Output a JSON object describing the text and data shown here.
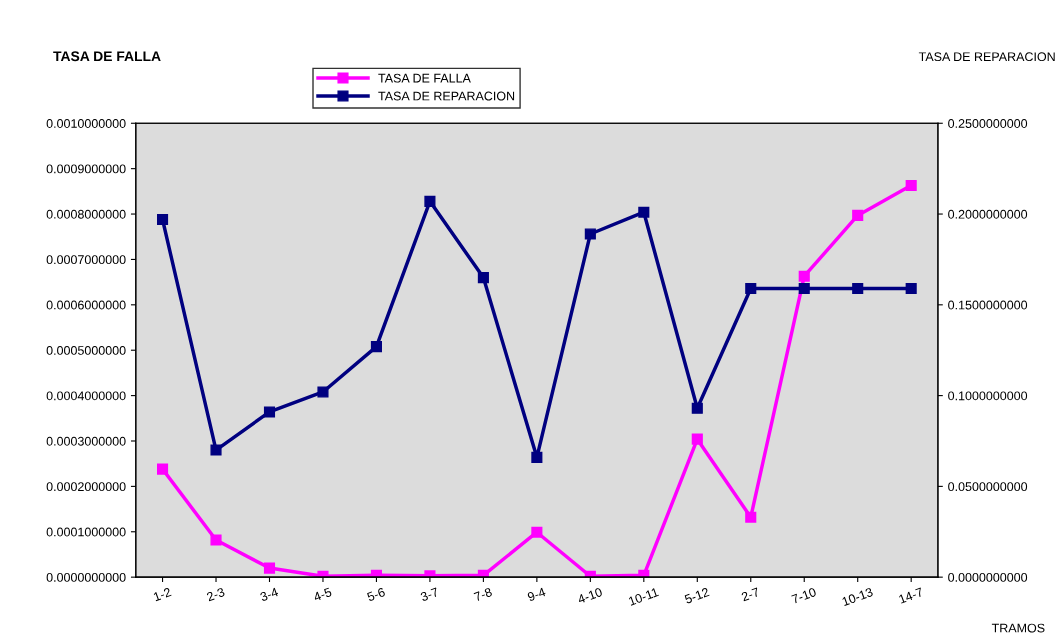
{
  "chart_data": {
    "type": "line",
    "categories": [
      "1-2",
      "2-3",
      "3-4",
      "4-5",
      "5-6",
      "3-7",
      "7-8",
      "9-4",
      "4-10",
      "10-11",
      "5-12",
      "2-7",
      "7-10",
      "10-13",
      "14-7"
    ],
    "series": [
      {
        "name": "TASA DE FALLA",
        "color": "#ff00ff",
        "values": [
          0.000238,
          8.2e-05,
          2e-05,
          2e-06,
          4e-06,
          3e-06,
          4e-06,
          9.9e-05,
          2e-06,
          4e-06,
          0.000304,
          0.000132,
          0.000663,
          0.000797,
          0.000863
        ]
      },
      {
        "name": "TASA DE REPARACION",
        "color": "#000080",
        "axis": "y2",
        "values": [
          0.197,
          0.07,
          0.091,
          0.102,
          0.127,
          0.207,
          0.165,
          0.066,
          0.189,
          0.201,
          0.093,
          0.159,
          0.159,
          0.159,
          0.159
        ]
      }
    ],
    "ylabel": "TASA DE FALLA",
    "y2label": "TASA DE REPARACION",
    "xlabel": "TRAMOS",
    "ylim": [
      0,
      0.001
    ],
    "yticks": [
      {
        "value": 0,
        "label": "0.0000000000"
      },
      {
        "value": 0.0001,
        "label": "0.0001000000"
      },
      {
        "value": 0.0002,
        "label": "0.0002000000"
      },
      {
        "value": 0.0003,
        "label": "0.0003000000"
      },
      {
        "value": 0.0004,
        "label": "0.0004000000"
      },
      {
        "value": 0.0005,
        "label": "0.0005000000"
      },
      {
        "value": 0.0006,
        "label": "0.0006000000"
      },
      {
        "value": 0.0007,
        "label": "0.0007000000"
      },
      {
        "value": 0.0008,
        "label": "0.0008000000"
      },
      {
        "value": 0.0009,
        "label": "0.0009000000"
      },
      {
        "value": 0.001,
        "label": "0.0010000000"
      }
    ],
    "y2lim": [
      0,
      0.25
    ],
    "y2ticks": [
      {
        "value": 0,
        "label": "0.0000000000"
      },
      {
        "value": 0.05,
        "label": "0.0500000000"
      },
      {
        "value": 0.1,
        "label": "0.1000000000"
      },
      {
        "value": 0.15,
        "label": "0.1500000000"
      },
      {
        "value": 0.2,
        "label": "0.2000000000"
      },
      {
        "value": 0.25,
        "label": "0.2500000000"
      }
    ],
    "grid": false,
    "legend": "top",
    "marker": "square",
    "line_style": "solid"
  }
}
